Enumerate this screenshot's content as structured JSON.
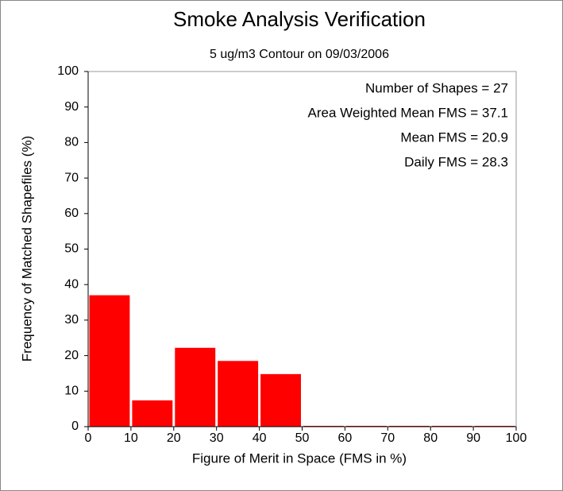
{
  "chart_data": {
    "type": "histogram",
    "title": "Smoke Analysis Verification",
    "subtitle": "5 ug/m3 Contour on 09/03/2006",
    "x_label": "Figure of Merit in Space (FMS in %)",
    "y_label": "Frequency of Matched Shapefiles (%)",
    "annotations": [
      "Number of Shapes = 27",
      "Area Weighted Mean FMS = 37.1",
      "Mean FMS = 20.9",
      "Daily FMS = 28.3"
    ],
    "bins": [
      0,
      10,
      20,
      30,
      40,
      50,
      60,
      70,
      80,
      90,
      100
    ],
    "values": [
      37.0,
      7.4,
      22.2,
      18.5,
      14.8,
      0,
      0,
      0,
      0,
      0
    ],
    "color": "#ff0000",
    "xlim": [
      0,
      100
    ],
    "xticks": [
      0,
      10,
      20,
      30,
      40,
      50,
      60,
      70,
      80,
      90,
      100
    ],
    "ylim": [
      0,
      100
    ],
    "yticks": [
      0,
      10,
      20,
      30,
      40,
      50,
      60,
      70,
      80,
      90,
      100
    ]
  }
}
